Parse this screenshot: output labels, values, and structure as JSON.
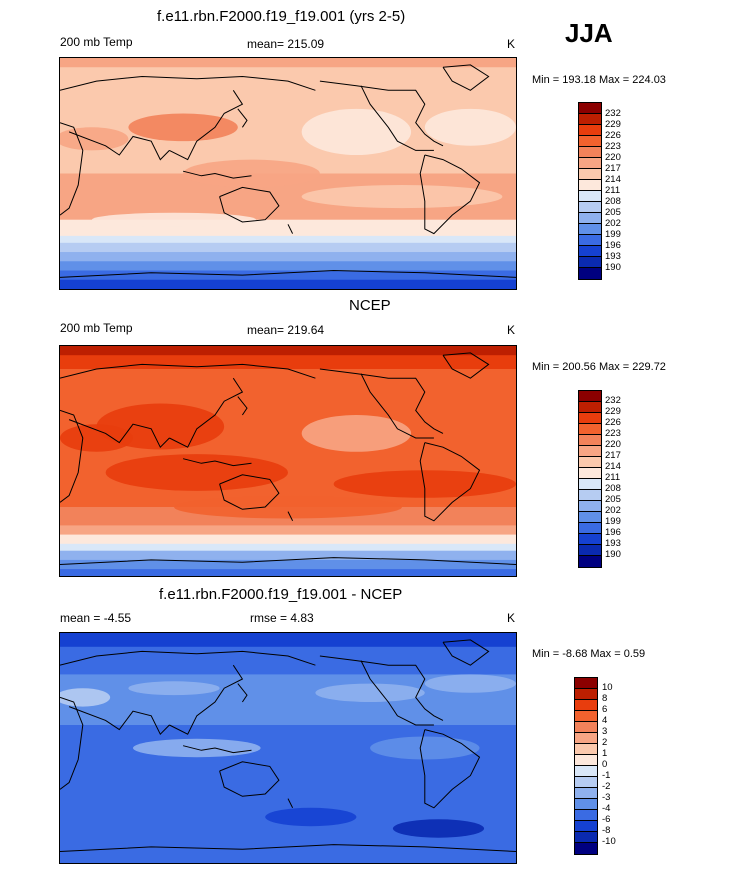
{
  "season": "JJA",
  "panels": [
    {
      "title": "f.e11.rbn.F2000.f19_f19.001 (yrs 2-5)",
      "left_label": "200 mb Temp",
      "stat_label": "mean=",
      "stat_value": "215.09",
      "units": "K",
      "minmax": "Min = 193.18 Max = 224.03",
      "colorbar": {
        "labels": [
          "232",
          "229",
          "226",
          "223",
          "220",
          "217",
          "214",
          "211",
          "208",
          "205",
          "202",
          "199",
          "196",
          "193",
          "190"
        ],
        "colors": [
          "#8b0000",
          "#bd1f01",
          "#e83d0d",
          "#f2622e",
          "#f2825a",
          "#f7a584",
          "#fbc9ad",
          "#fde8dc",
          "#d9e7f8",
          "#b6ccf2",
          "#8fb1ee",
          "#6090e8",
          "#3a6be3",
          "#1541d1",
          "#0a2ab0",
          "#000080"
        ]
      },
      "map_style": "model"
    },
    {
      "title": "NCEP",
      "left_label": "200 mb Temp",
      "stat_label": "mean=",
      "stat_value": "219.64",
      "units": "K",
      "minmax": "Min = 200.56 Max = 229.72",
      "colorbar": {
        "labels": [
          "232",
          "229",
          "226",
          "223",
          "220",
          "217",
          "214",
          "211",
          "208",
          "205",
          "202",
          "199",
          "196",
          "193",
          "190"
        ],
        "colors": [
          "#8b0000",
          "#bd1f01",
          "#e83d0d",
          "#f2622e",
          "#f2825a",
          "#f7a584",
          "#fbc9ad",
          "#fde8dc",
          "#d9e7f8",
          "#b6ccf2",
          "#8fb1ee",
          "#6090e8",
          "#3a6be3",
          "#1541d1",
          "#0a2ab0",
          "#000080"
        ]
      },
      "map_style": "obs"
    },
    {
      "title": "f.e11.rbn.F2000.f19_f19.001 - NCEP",
      "left_label": "mean =  -4.55",
      "stat_label": "rmse =",
      "stat_value": "4.83",
      "units": "K",
      "minmax": "Min =  -8.68 Max =   0.59",
      "colorbar": {
        "labels": [
          "10",
          "8",
          "6",
          "4",
          "3",
          "2",
          "1",
          "0",
          "-1",
          "-2",
          "-3",
          "-4",
          "-6",
          "-8",
          "-10"
        ],
        "colors": [
          "#8b0000",
          "#bd1f01",
          "#e83d0d",
          "#f2622e",
          "#f2825a",
          "#f7a584",
          "#fbc9ad",
          "#fde8dc",
          "#d9e7f8",
          "#b6ccf2",
          "#8fb1ee",
          "#6090e8",
          "#3a6be3",
          "#1541d1",
          "#0a2ab0",
          "#000080"
        ]
      },
      "map_style": "diff"
    }
  ]
}
